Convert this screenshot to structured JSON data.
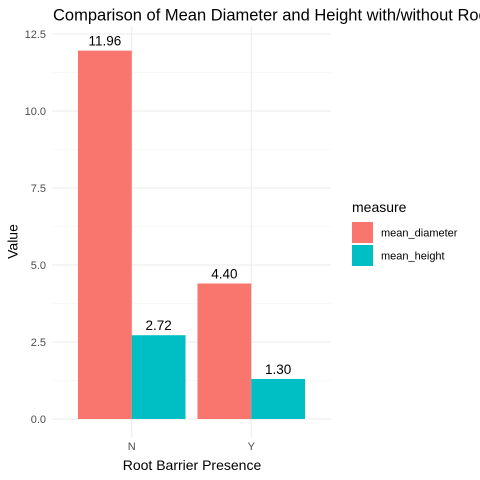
{
  "chart_data": {
    "type": "bar",
    "title": "Comparison of Mean Diameter and Height with/without Root Barrier",
    "xlabel": "Root Barrier Presence",
    "ylabel": "Value",
    "categories": [
      "N",
      "Y"
    ],
    "series": [
      {
        "name": "mean_diameter",
        "color": "#F8766D",
        "values": [
          11.96,
          4.4
        ],
        "labels": [
          "11.96",
          "4.40"
        ]
      },
      {
        "name": "mean_height",
        "color": "#00BFC4",
        "values": [
          2.72,
          1.3
        ],
        "labels": [
          "2.72",
          "1.30"
        ]
      }
    ],
    "ylim": [
      0,
      12.5
    ],
    "yticks": [
      0,
      2.5,
      5,
      7.5,
      10,
      12.5
    ],
    "ytick_labels": [
      "0.0",
      "2.5",
      "5.0",
      "7.5",
      "10.0",
      "12.5"
    ],
    "grid": true,
    "legend_title": "measure",
    "legend_position": "right"
  }
}
